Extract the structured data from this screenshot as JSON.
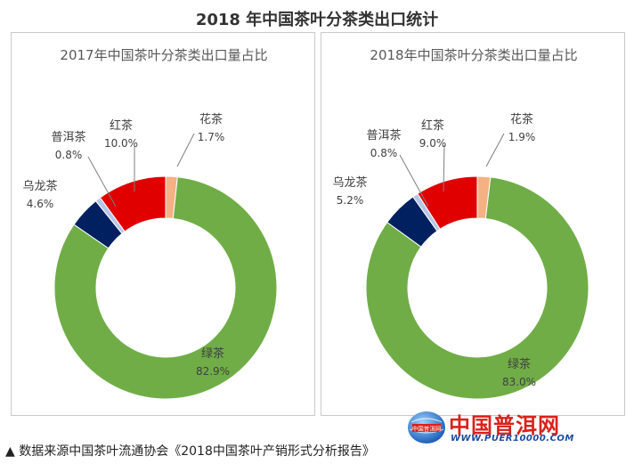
{
  "title": "2018 年中国茶叶分茶类出口统计",
  "caption": "▲ 数据来源中国茶叶流通协会《2018中国茶叶产销形式分析报告》",
  "watermark": {
    "name": "中国普洱网",
    "url": "WWW.PUER10000.COM",
    "emblem_text": "中国普洱网"
  },
  "colors": {
    "green": "#70ad47",
    "red": "#e00000",
    "navy": "#002060",
    "light_blue": "#b4c7e7",
    "salmon": "#f4b183"
  },
  "chart_data": [
    {
      "type": "pie",
      "title": "2017年中国茶叶分茶类出口量占比",
      "slices": [
        {
          "label": "花茶",
          "value": 1.7,
          "value_label": "1.7%",
          "color": "#f4b183"
        },
        {
          "label": "绿茶",
          "value": 82.9,
          "value_label": "82.9%",
          "color": "#70ad47"
        },
        {
          "label": "乌龙茶",
          "value": 4.6,
          "value_label": "4.6%",
          "color": "#002060"
        },
        {
          "label": "普洱茶",
          "value": 0.8,
          "value_label": "0.8%",
          "color": "#b4c7e7"
        },
        {
          "label": "红茶",
          "value": 10.0,
          "value_label": "10.0%",
          "color": "#e00000"
        }
      ]
    },
    {
      "type": "pie",
      "title": "2018年中国茶叶分茶类出口量占比",
      "slices": [
        {
          "label": "花茶",
          "value": 1.9,
          "value_label": "1.9%",
          "color": "#f4b183"
        },
        {
          "label": "绿茶",
          "value": 83.0,
          "value_label": "83.0%",
          "color": "#70ad47"
        },
        {
          "label": "乌龙茶",
          "value": 5.2,
          "value_label": "5.2%",
          "color": "#002060"
        },
        {
          "label": "普洱茶",
          "value": 0.8,
          "value_label": "0.8%",
          "color": "#b4c7e7"
        },
        {
          "label": "红茶",
          "value": 9.0,
          "value_label": "9.0%",
          "color": "#e00000"
        }
      ]
    }
  ]
}
